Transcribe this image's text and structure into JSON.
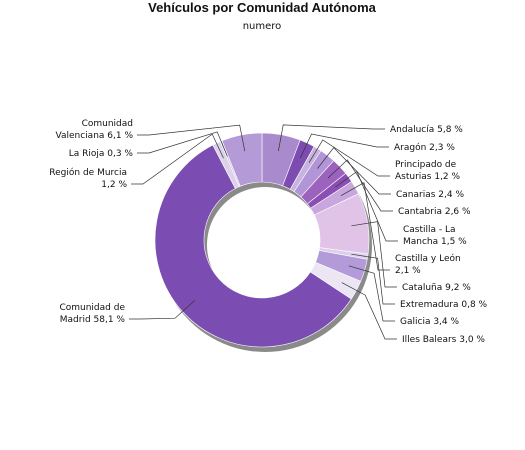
{
  "chart_data": {
    "type": "pie",
    "donut": true,
    "title": "Vehículos por Comunidad Autónoma",
    "subtitle": "numero",
    "legend": "none",
    "slices": [
      {
        "label": [
          "Andalucía 5,8 %"
        ],
        "value": 5.8,
        "color": "#a98acd"
      },
      {
        "label": [
          "Aragón 2,3 %"
        ],
        "value": 2.3,
        "color": "#7c4cb0"
      },
      {
        "label": [
          "Principado de",
          "Asturias 1,2 %"
        ],
        "value": 1.2,
        "color": "#c7b2e0"
      },
      {
        "label": [
          "Canarias 2,4 %"
        ],
        "value": 2.4,
        "color": "#b295d6"
      },
      {
        "label": [
          "Cantabria 2,6 %"
        ],
        "value": 2.6,
        "color": "#9b63bd"
      },
      {
        "label": [
          "Castilla - La",
          "Mancha 1,5 %"
        ],
        "value": 1.5,
        "color": "#8a4fb5"
      },
      {
        "label": [
          "Castilla y León",
          "2,1 %"
        ],
        "value": 2.1,
        "color": "#c9a6dd"
      },
      {
        "label": [
          "Cataluña 9,2 %"
        ],
        "value": 9.2,
        "color": "#e2c3e8"
      },
      {
        "label": [
          "Extremadura 0,8 %"
        ],
        "value": 0.8,
        "color": "#ddd0ec"
      },
      {
        "label": [
          "Galicia 3,4 %"
        ],
        "value": 3.4,
        "color": "#b39ad8"
      },
      {
        "label": [
          "Illes Balears 3,0 %"
        ],
        "value": 3.0,
        "color": "#ece6f4"
      },
      {
        "label": [
          "Comunidad de",
          "Madrid 58,1 %"
        ],
        "value": 58.1,
        "color": "#7b4cb2"
      },
      {
        "label": [
          "Región de Murcia",
          "1,2 %"
        ],
        "value": 1.2,
        "color": "#ddd2ea"
      },
      {
        "label": [
          "La Rioja 0,3 %"
        ],
        "value": 0.3,
        "color": "#cfc4e0"
      },
      {
        "label": [
          "Comunidad",
          "Valenciana 6,1 %"
        ],
        "value": 6.1,
        "color": "#b59ad8"
      }
    ]
  }
}
